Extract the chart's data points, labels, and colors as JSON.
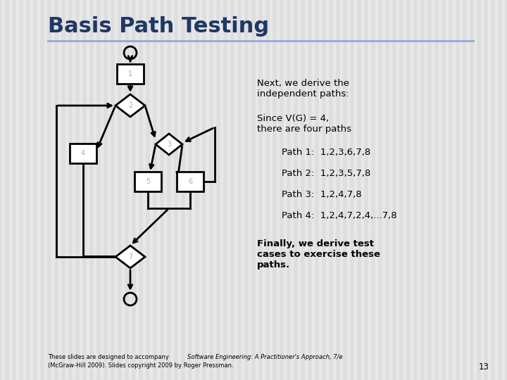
{
  "title": "Basis Path Testing",
  "title_color": "#1F3864",
  "title_fontsize": 22,
  "background_color": "#E8E8E8",
  "stripe_color": "#D8D8D8",
  "divider_color": "#8EAADB",
  "right_text_1": "Next, we derive the\nindependent paths:",
  "right_text_2": "Since V(G) = 4,\nthere are four paths",
  "path1": "Path 1:  1,2,3,6,7,8",
  "path2": "Path 2:  1,2,3,5,7,8",
  "path3": "Path 3:  1,2,4,7,8",
  "path4": "Path 4:  1,2,4,7,2,4,...7,8",
  "right_text_3": "Finally, we derive test\ncases to exercise these\npaths.",
  "footer_normal": "These slides are designed to accompany ",
  "footer_italic": "Software Engineering: A Practitioner's Approach, 7/e",
  "footer_normal2": "\n(McGraw-Hill 2009). Slides copyright 2009 by Roger Pressman.",
  "page_number": "13",
  "diagram_color": "#000000",
  "node_fill": "#FFFFFF",
  "node_label_color": "#AAAAAA"
}
